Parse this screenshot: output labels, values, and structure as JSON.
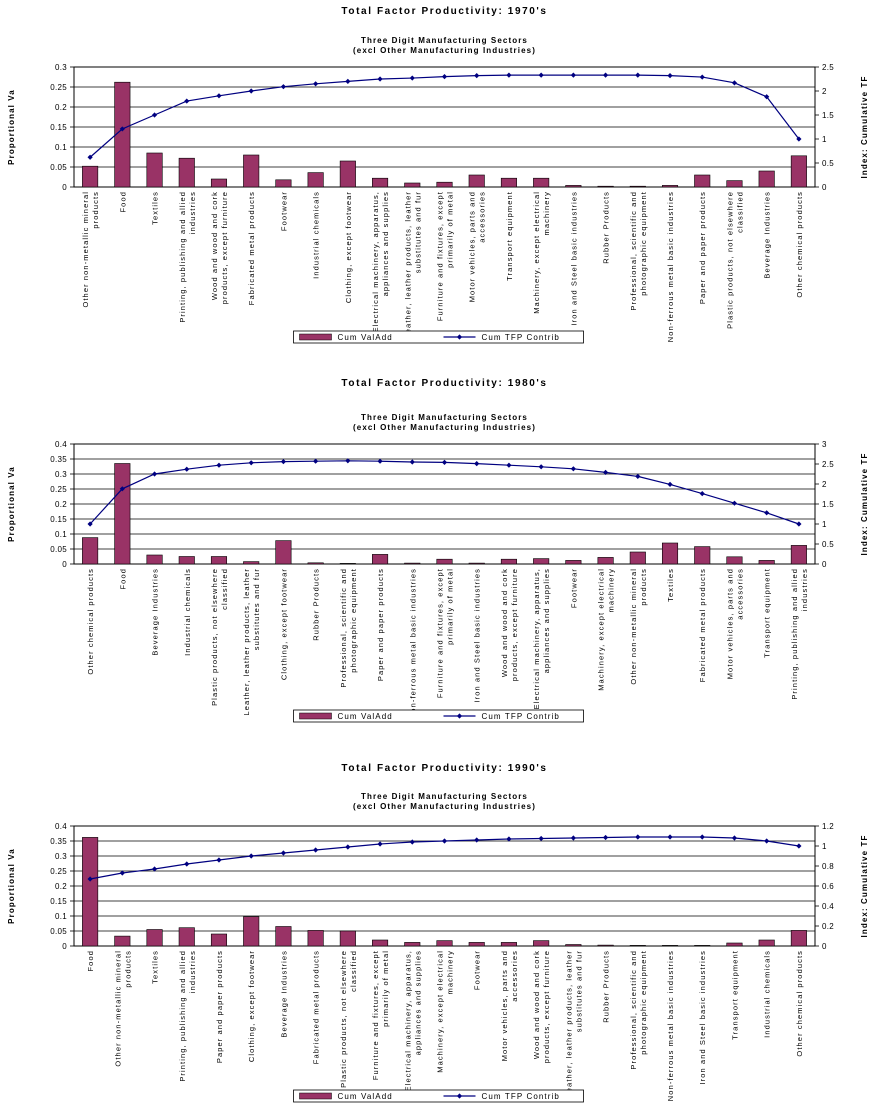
{
  "colors": {
    "bar": "#993366",
    "line": "#000080",
    "grid": "#000000"
  },
  "chart_data": [
    {
      "type": "bar",
      "title": "Total Factor Productivity: 1970's",
      "subtitle_lines": [
        "Three Digit Manufacturing Sectors",
        "(excl Other Manufacturing Industries)"
      ],
      "ylabel": "Proportional Va",
      "y2label": "Index: Cumulative TF",
      "ylim": [
        0,
        0.3
      ],
      "y2lim": [
        0,
        2.5
      ],
      "yticks": [
        "0",
        "0.05",
        "0.1",
        "0.15",
        "0.2",
        "0.25",
        "0.3"
      ],
      "y2ticks": [
        "0",
        "0.5",
        "1",
        "1.5",
        "2",
        "2.5"
      ],
      "grid": true,
      "legend_position": "bottom",
      "categories": [
        [
          "Other non-metallic mineral",
          "products"
        ],
        [
          "Food"
        ],
        [
          "Textiles"
        ],
        [
          "Printing, publishing and allied",
          "industries"
        ],
        [
          "Wood and wood and cork",
          "products, except furniture"
        ],
        [
          "Fabricated metal products"
        ],
        [
          "Footwear"
        ],
        [
          "Industrial chemicals"
        ],
        [
          "Clothing, except footwear"
        ],
        [
          "Electrical machinery, apparatus,",
          "appliances and supplies"
        ],
        [
          "Leather, leather products, leather",
          "substitutes and fur"
        ],
        [
          "Furniture and fixtures, except",
          "primarily of metal"
        ],
        [
          "Motor vehicles, parts and",
          "accessories"
        ],
        [
          "Transport equipment"
        ],
        [
          "Machinery, except electrical",
          "machinery"
        ],
        [
          "Iron and Steel basic industries"
        ],
        [
          "Rubber Products"
        ],
        [
          "Professional, scientific and",
          "photographic equipment"
        ],
        [
          "Non-ferrous metal basic industries"
        ],
        [
          "Paper and paper products"
        ],
        [
          "Plastic products, not elsewhere",
          "classified"
        ],
        [
          "Beverage Industries"
        ],
        [
          "Other chemical products"
        ]
      ],
      "series": [
        {
          "name": "Cum ValAdd",
          "kind": "bar",
          "axis": "left",
          "values": [
            0.052,
            0.262,
            0.085,
            0.072,
            0.02,
            0.08,
            0.018,
            0.036,
            0.065,
            0.022,
            0.01,
            0.012,
            0.03,
            0.022,
            0.022,
            0.004,
            0.002,
            0.002,
            0.004,
            0.03,
            0.016,
            0.04,
            0.078
          ]
        },
        {
          "name": "Cum TFP Contrib",
          "kind": "line",
          "axis": "right",
          "values": [
            0.62,
            1.21,
            1.5,
            1.79,
            1.9,
            2.0,
            2.09,
            2.15,
            2.2,
            2.25,
            2.27,
            2.3,
            2.32,
            2.33,
            2.33,
            2.33,
            2.33,
            2.33,
            2.32,
            2.29,
            2.17,
            1.88,
            1.0
          ]
        }
      ]
    },
    {
      "type": "bar",
      "title": "Total Factor Productivity: 1980's",
      "subtitle_lines": [
        "Three Digit Manufacturing Sectors",
        "(excl Other Manufacturing Industries)"
      ],
      "ylabel": "Proportional Va",
      "y2label": "Index: Cumulative TF",
      "ylim": [
        0,
        0.4
      ],
      "y2lim": [
        0,
        3
      ],
      "yticks": [
        "0",
        "0.05",
        "0.1",
        "0.15",
        "0.2",
        "0.25",
        "0.3",
        "0.35",
        "0.4"
      ],
      "y2ticks": [
        "0",
        "0.5",
        "1",
        "1.5",
        "2",
        "2.5",
        "3"
      ],
      "grid": true,
      "legend_position": "bottom",
      "categories": [
        [
          "Other chemical products"
        ],
        [
          "Food"
        ],
        [
          "Beverage Industries"
        ],
        [
          "Industrial chemicals"
        ],
        [
          "Plastic products, not elsewhere",
          "classified"
        ],
        [
          "Leather, leather products, leather",
          "substitutes and fur"
        ],
        [
          "Clothing, except footwear"
        ],
        [
          "Rubber Products"
        ],
        [
          "Professional, scientific and",
          "photographic equipment"
        ],
        [
          "Paper and paper products"
        ],
        [
          "Non-ferrous metal basic industries"
        ],
        [
          "Furniture and fixtures, except",
          "primarily of metal"
        ],
        [
          "Iron and Steel basic industries"
        ],
        [
          "Wood and wood and cork",
          "products, except furniture"
        ],
        [
          "Electrical machinery, apparatus,",
          "appliances and supplies"
        ],
        [
          "Footwear"
        ],
        [
          "Machinery, except electrical",
          "machinery"
        ],
        [
          "Other non-metallic mineral",
          "products"
        ],
        [
          "Textiles"
        ],
        [
          "Fabricated metal products"
        ],
        [
          "Motor vehicles, parts and",
          "accessories"
        ],
        [
          "Transport equipment"
        ],
        [
          "Printing, publishing and allied",
          "industries"
        ]
      ],
      "series": [
        {
          "name": "Cum ValAdd",
          "kind": "bar",
          "axis": "left",
          "values": [
            0.088,
            0.335,
            0.03,
            0.025,
            0.025,
            0.008,
            0.078,
            0.004,
            0.002,
            0.032,
            0.003,
            0.016,
            0.003,
            0.016,
            0.018,
            0.012,
            0.022,
            0.04,
            0.07,
            0.058,
            0.024,
            0.012,
            0.062
          ]
        },
        {
          "name": "Cum TFP Contrib",
          "kind": "line",
          "axis": "right",
          "values": [
            1.0,
            1.88,
            2.25,
            2.37,
            2.47,
            2.53,
            2.56,
            2.57,
            2.58,
            2.57,
            2.55,
            2.54,
            2.51,
            2.47,
            2.43,
            2.38,
            2.29,
            2.19,
            1.99,
            1.76,
            1.52,
            1.28,
            1.0
          ]
        }
      ]
    },
    {
      "type": "bar",
      "title": "Total Factor Productivity: 1990's",
      "subtitle_lines": [
        "Three Digit Manufacturing Sectors",
        "(excl Other Manufacturing Industries)"
      ],
      "ylabel": "Proportional Va",
      "y2label": "Index: Cumulative TF",
      "ylim": [
        0,
        0.4
      ],
      "y2lim": [
        0,
        1.2
      ],
      "yticks": [
        "0",
        "0.05",
        "0.1",
        "0.15",
        "0.2",
        "0.25",
        "0.3",
        "0.35",
        "0.4"
      ],
      "y2ticks": [
        "0",
        "0.2",
        "0.4",
        "0.6",
        "0.8",
        "1",
        "1.2"
      ],
      "grid": true,
      "legend_position": "bottom",
      "categories": [
        [
          "Food"
        ],
        [
          "Other non-metallic mineral",
          "products"
        ],
        [
          "Textiles"
        ],
        [
          "Printing, publishing and allied",
          "industries"
        ],
        [
          "Paper and paper products"
        ],
        [
          "Clothing, except footwear"
        ],
        [
          "Beverage Industries"
        ],
        [
          "Fabricated metal products"
        ],
        [
          "Plastic products, not elsewhere",
          "classified"
        ],
        [
          "Furniture and fixtures, except",
          "primarily of metal"
        ],
        [
          "Electrical machinery, apparatus,",
          "appliances and supplies"
        ],
        [
          "Machinery, except electrical",
          "machinery"
        ],
        [
          "Footwear"
        ],
        [
          "Motor vehicles, parts and",
          "accessories"
        ],
        [
          "Wood and wood and cork",
          "products, except furniture"
        ],
        [
          "Leather, leather products, leather",
          "substitutes and fur"
        ],
        [
          "Rubber Products"
        ],
        [
          "Professional, scientific and",
          "photographic equipment"
        ],
        [
          "Non-ferrous metal basic industries"
        ],
        [
          "Iron and Steel basic industries"
        ],
        [
          "Transport equipment"
        ],
        [
          "Industrial chemicals"
        ],
        [
          "Other chemical products"
        ]
      ],
      "series": [
        {
          "name": "Cum ValAdd",
          "kind": "bar",
          "axis": "left",
          "values": [
            0.362,
            0.033,
            0.055,
            0.061,
            0.04,
            0.098,
            0.065,
            0.052,
            0.05,
            0.02,
            0.012,
            0.018,
            0.012,
            0.012,
            0.018,
            0.005,
            0.003,
            0.002,
            0.002,
            0.002,
            0.01,
            0.02,
            0.052
          ]
        },
        {
          "name": "Cum TFP Contrib",
          "kind": "line",
          "axis": "right",
          "values": [
            0.67,
            0.73,
            0.77,
            0.82,
            0.86,
            0.9,
            0.93,
            0.96,
            0.99,
            1.02,
            1.04,
            1.05,
            1.06,
            1.07,
            1.075,
            1.08,
            1.085,
            1.09,
            1.09,
            1.09,
            1.08,
            1.05,
            1.0
          ]
        }
      ]
    }
  ]
}
